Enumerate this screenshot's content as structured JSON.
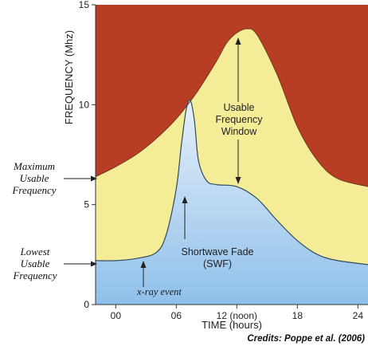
{
  "chart_data": {
    "type": "area",
    "ylabel": "FREQUENCY (Mhz)",
    "xlabel": "TIME (hours)",
    "xlim": [
      -2,
      25
    ],
    "ylim": [
      0,
      15
    ],
    "x_ticks": [
      0,
      6,
      12,
      18,
      24
    ],
    "x_tick_labels": [
      "00",
      "06",
      "12 (noon)",
      "18",
      "24"
    ],
    "y_ticks": [
      0,
      5,
      10,
      15
    ],
    "y_tick_labels": [
      "0",
      "5",
      "10",
      "15"
    ],
    "series": [
      {
        "name": "Maximum Usable Frequency",
        "color": "#f5ec98",
        "x": [
          -2,
          0,
          2,
          4,
          6,
          8,
          10,
          11,
          12,
          13,
          14,
          16,
          18,
          20,
          22,
          25
        ],
        "y": [
          6.4,
          6.9,
          7.5,
          8.3,
          9.3,
          10.6,
          12.2,
          13.1,
          13.6,
          13.8,
          13.5,
          11.5,
          8.9,
          7.2,
          6.3,
          5.9
        ]
      },
      {
        "name": "Lowest Usable Frequency",
        "color": "#a8cfee",
        "x": [
          -2,
          0,
          2,
          4,
          5,
          6,
          6.5,
          7,
          7.4,
          7.8,
          8.2,
          9,
          10,
          12,
          14,
          16,
          18,
          20,
          22,
          25
        ],
        "y": [
          2.2,
          2.2,
          2.3,
          2.6,
          3.5,
          5.8,
          8.0,
          9.8,
          10.2,
          9.2,
          7.2,
          6.2,
          6.0,
          5.9,
          5.3,
          4.2,
          3.2,
          2.5,
          2.2,
          2.0
        ]
      }
    ],
    "above_muf_color": "#b73d24",
    "annotations": {
      "usable_window": [
        "Usable",
        "Frequency",
        "Window"
      ],
      "swf": [
        "Shortwave Fade",
        "(SWF)"
      ],
      "xray": "x-ray event"
    },
    "left_labels": {
      "muf": [
        "Maximum",
        "Usable",
        "Frequency"
      ],
      "luf": [
        "Lowest",
        "Usable",
        "Frequency"
      ]
    },
    "credit": "Credits: Poppe et al. (2006)"
  }
}
